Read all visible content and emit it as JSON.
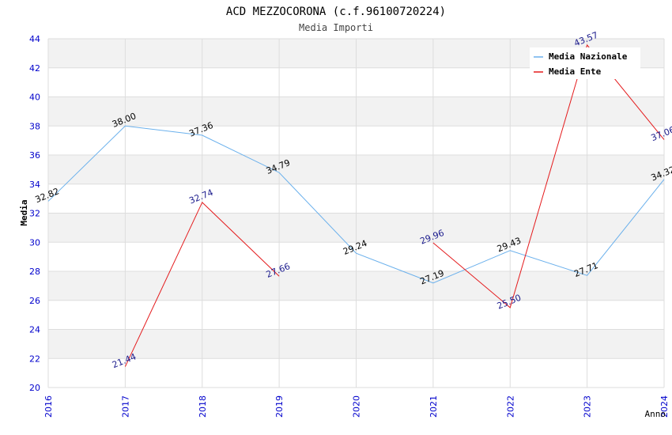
{
  "chart_data": {
    "type": "line",
    "title": "ACD MEZZOCORONA (c.f.96100720224)",
    "subtitle": "Media Importi",
    "xlabel": "Anno",
    "ylabel": "Media",
    "ylim": [
      20,
      44
    ],
    "ytick_step": 2,
    "categories": [
      "2016",
      "2017",
      "2018",
      "2019",
      "2020",
      "2021",
      "2022",
      "2023",
      "2024"
    ],
    "series": [
      {
        "name": "Media Nazionale",
        "color": "#6ab0ec",
        "label_color": "#000000",
        "values": [
          32.82,
          38.0,
          37.36,
          34.79,
          29.24,
          27.19,
          29.43,
          27.71,
          34.32
        ],
        "labels": [
          "32.82",
          "38.00",
          "37.36",
          "34.79",
          "29.24",
          "27.19",
          "29.43",
          "27.71",
          "34.32"
        ]
      },
      {
        "name": "Media Ente",
        "color": "#e41a1c",
        "label_color": "#1a1a8c",
        "values": [
          null,
          21.44,
          32.74,
          27.66,
          null,
          29.96,
          25.5,
          43.57,
          37.06
        ],
        "labels": [
          null,
          "21.44",
          "32.74",
          "27.66",
          null,
          "29.96",
          "25.50",
          "43.57",
          "37.06"
        ]
      }
    ],
    "legend_position": "top-right",
    "colors": {
      "band": "#f2f2f2",
      "grid": "#dddddd",
      "axis_tick_label": "#0000cc",
      "title": "#000000",
      "subtitle": "#444444"
    }
  }
}
